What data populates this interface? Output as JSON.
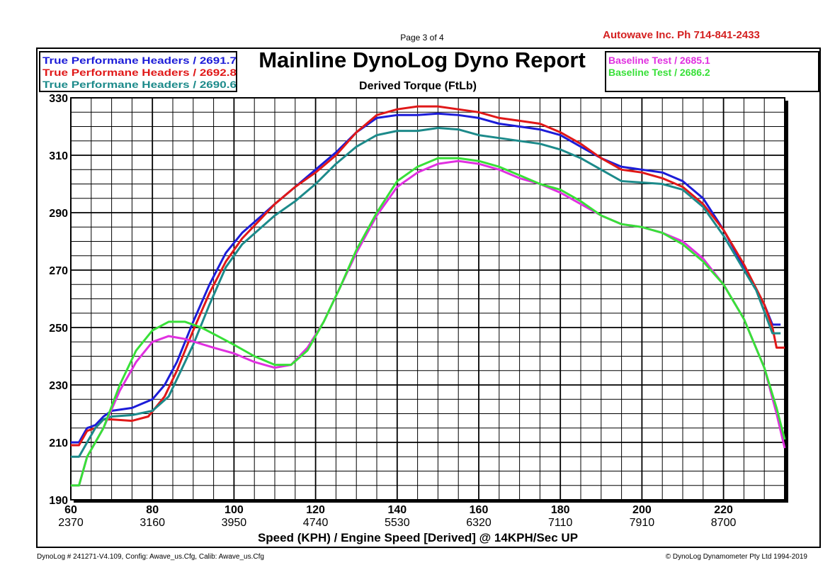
{
  "header": {
    "page": "Page 3 of 4",
    "company": "Autowave Inc.  Ph 714-841-2433",
    "title": "Mainline DynoLog Dyno Report"
  },
  "footer": {
    "left": "DynoLog # 241271-V4.109, Config: Awave_us.Cfg, Calib: Awave_us.Cfg",
    "right": "© DynoLog Dynamometer Pty Ltd 1994-2019"
  },
  "chart_data": {
    "type": "line",
    "title": "Derived Torque (FtLb)",
    "xlabel": "Speed (KPH) / Engine Speed [Derived] @ 14KPH/Sec UP",
    "ylabel": "",
    "xlim": [
      60,
      235
    ],
    "ylim": [
      190,
      330
    ],
    "grid": true,
    "x_ticks": [
      60,
      80,
      100,
      120,
      140,
      160,
      180,
      200,
      220
    ],
    "x_ticks_rpm": [
      "2370",
      "3160",
      "3950",
      "4740",
      "5530",
      "6320",
      "7110",
      "7910",
      "8700"
    ],
    "y_ticks": [
      330,
      310,
      290,
      270,
      250,
      230,
      210,
      190
    ],
    "legend_left": [
      "True Performane Headers / 2691.7",
      "True Performane Headers / 2692.8",
      "True Performane Headers / 2690.6"
    ],
    "legend_right": [
      "Baseline Test / 2685.1",
      "Baseline Test / 2686.2"
    ],
    "series": [
      {
        "name": "True Performane Headers / 2691.7",
        "color": "#1c1cd8",
        "points": [
          [
            60,
            210
          ],
          [
            62,
            210
          ],
          [
            64,
            215
          ],
          [
            66,
            216
          ],
          [
            68,
            219
          ],
          [
            70,
            221
          ],
          [
            75,
            222
          ],
          [
            80,
            225
          ],
          [
            83,
            230
          ],
          [
            86,
            238
          ],
          [
            90,
            252
          ],
          [
            94,
            265
          ],
          [
            98,
            276
          ],
          [
            102,
            283
          ],
          [
            106,
            288
          ],
          [
            110,
            293
          ],
          [
            115,
            299
          ],
          [
            120,
            305
          ],
          [
            125,
            311
          ],
          [
            130,
            318
          ],
          [
            135,
            323
          ],
          [
            140,
            324
          ],
          [
            145,
            324
          ],
          [
            150,
            324.5
          ],
          [
            155,
            324
          ],
          [
            160,
            323
          ],
          [
            165,
            321
          ],
          [
            170,
            320
          ],
          [
            175,
            319
          ],
          [
            180,
            317
          ],
          [
            185,
            313
          ],
          [
            190,
            309
          ],
          [
            195,
            306
          ],
          [
            200,
            305
          ],
          [
            205,
            304
          ],
          [
            210,
            301
          ],
          [
            215,
            295
          ],
          [
            220,
            284
          ],
          [
            225,
            271
          ],
          [
            230,
            258
          ],
          [
            232,
            251
          ],
          [
            234,
            251
          ]
        ]
      },
      {
        "name": "True Performane Headers / 2692.8",
        "color": "#e01818",
        "points": [
          [
            60,
            209
          ],
          [
            62,
            209
          ],
          [
            64,
            214
          ],
          [
            66,
            215
          ],
          [
            68,
            218
          ],
          [
            70,
            218
          ],
          [
            75,
            217.5
          ],
          [
            79,
            219
          ],
          [
            83,
            226
          ],
          [
            86,
            235
          ],
          [
            90,
            249
          ],
          [
            94,
            262
          ],
          [
            98,
            273
          ],
          [
            102,
            281
          ],
          [
            106,
            287
          ],
          [
            110,
            293
          ],
          [
            115,
            299
          ],
          [
            120,
            304
          ],
          [
            125,
            310
          ],
          [
            130,
            318
          ],
          [
            135,
            324
          ],
          [
            140,
            326
          ],
          [
            145,
            327
          ],
          [
            150,
            327
          ],
          [
            155,
            326
          ],
          [
            160,
            325
          ],
          [
            165,
            323
          ],
          [
            170,
            322
          ],
          [
            175,
            321
          ],
          [
            180,
            318
          ],
          [
            185,
            314
          ],
          [
            190,
            309
          ],
          [
            195,
            305
          ],
          [
            200,
            304
          ],
          [
            205,
            302
          ],
          [
            210,
            299
          ],
          [
            215,
            293
          ],
          [
            220,
            284
          ],
          [
            225,
            272
          ],
          [
            230,
            258
          ],
          [
            232,
            250
          ],
          [
            233,
            243
          ],
          [
            235,
            243
          ]
        ]
      },
      {
        "name": "True Performane Headers / 2690.6",
        "color": "#1c8a8a",
        "points": [
          [
            60,
            205
          ],
          [
            62,
            205
          ],
          [
            64,
            210
          ],
          [
            66,
            215
          ],
          [
            68,
            218
          ],
          [
            70,
            219
          ],
          [
            75,
            219.5
          ],
          [
            80,
            221
          ],
          [
            84,
            226
          ],
          [
            87,
            235
          ],
          [
            90,
            244
          ],
          [
            94,
            258
          ],
          [
            98,
            271
          ],
          [
            102,
            279
          ],
          [
            106,
            284
          ],
          [
            110,
            289
          ],
          [
            115,
            294
          ],
          [
            120,
            300
          ],
          [
            125,
            307
          ],
          [
            130,
            313
          ],
          [
            135,
            317
          ],
          [
            140,
            318.5
          ],
          [
            145,
            318.5
          ],
          [
            150,
            319.5
          ],
          [
            155,
            319
          ],
          [
            160,
            317
          ],
          [
            165,
            316
          ],
          [
            170,
            315
          ],
          [
            175,
            314
          ],
          [
            180,
            312
          ],
          [
            185,
            309
          ],
          [
            190,
            305
          ],
          [
            195,
            301
          ],
          [
            200,
            300.5
          ],
          [
            205,
            300
          ],
          [
            210,
            298
          ],
          [
            215,
            292
          ],
          [
            220,
            282
          ],
          [
            225,
            270
          ],
          [
            228,
            263
          ],
          [
            232,
            248
          ],
          [
            234,
            248
          ]
        ]
      },
      {
        "name": "Baseline Test / 2685.1",
        "color": "#e030e0",
        "points": [
          [
            60,
            195
          ],
          [
            62,
            195
          ],
          [
            64,
            205
          ],
          [
            68,
            215
          ],
          [
            72,
            228
          ],
          [
            76,
            238
          ],
          [
            80,
            245
          ],
          [
            84,
            247
          ],
          [
            88,
            246
          ],
          [
            95,
            243
          ],
          [
            100,
            241
          ],
          [
            105,
            238
          ],
          [
            110,
            236
          ],
          [
            114,
            237
          ],
          [
            118,
            243
          ],
          [
            122,
            252
          ],
          [
            126,
            264
          ],
          [
            130,
            276
          ],
          [
            135,
            289
          ],
          [
            140,
            299
          ],
          [
            145,
            304
          ],
          [
            150,
            307
          ],
          [
            155,
            308
          ],
          [
            160,
            307
          ],
          [
            165,
            305
          ],
          [
            170,
            302
          ],
          [
            175,
            300
          ],
          [
            180,
            297
          ],
          [
            185,
            293
          ],
          [
            190,
            289
          ],
          [
            195,
            286
          ],
          [
            200,
            285
          ],
          [
            205,
            283
          ],
          [
            210,
            280
          ],
          [
            215,
            274
          ],
          [
            220,
            265
          ],
          [
            225,
            253
          ],
          [
            230,
            236
          ],
          [
            233,
            220
          ],
          [
            235,
            208
          ]
        ]
      },
      {
        "name": "Baseline Test / 2686.2",
        "color": "#38e038",
        "points": [
          [
            60,
            195
          ],
          [
            62,
            195
          ],
          [
            64,
            205
          ],
          [
            68,
            215
          ],
          [
            72,
            230
          ],
          [
            76,
            242
          ],
          [
            80,
            249
          ],
          [
            84,
            252
          ],
          [
            88,
            252
          ],
          [
            92,
            250
          ],
          [
            96,
            247
          ],
          [
            100,
            244
          ],
          [
            105,
            240
          ],
          [
            110,
            237
          ],
          [
            114,
            237
          ],
          [
            118,
            242
          ],
          [
            122,
            252
          ],
          [
            126,
            264
          ],
          [
            130,
            277
          ],
          [
            135,
            290
          ],
          [
            140,
            301
          ],
          [
            145,
            306
          ],
          [
            150,
            309
          ],
          [
            155,
            309
          ],
          [
            160,
            308
          ],
          [
            165,
            306
          ],
          [
            170,
            303
          ],
          [
            175,
            300
          ],
          [
            180,
            298
          ],
          [
            185,
            294
          ],
          [
            190,
            289
          ],
          [
            195,
            286
          ],
          [
            200,
            285
          ],
          [
            205,
            283
          ],
          [
            210,
            279
          ],
          [
            215,
            273
          ],
          [
            220,
            265
          ],
          [
            225,
            253
          ],
          [
            230,
            236
          ],
          [
            233,
            222
          ],
          [
            235,
            211
          ]
        ]
      }
    ]
  }
}
